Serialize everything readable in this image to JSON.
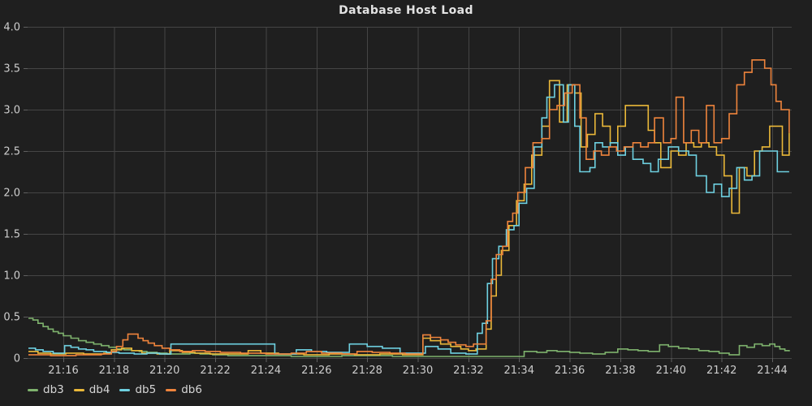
{
  "colors": {
    "background": "#1f1f1f",
    "grid": "#454545",
    "tick": "#5f5f5f",
    "tick_label": "#cdcdcd",
    "title_text": "#e3e3e3",
    "legend_text": "#d6d6d6"
  },
  "chart_data": {
    "type": "line",
    "title": "Database Host Load",
    "line_style": "step-after",
    "grid": true,
    "legend_position": "bottom-left",
    "x_axis": {
      "unit": "time (HH:MM), minutes after 21:00",
      "tick_labels": [
        "21:16",
        "21:18",
        "21:20",
        "21:22",
        "21:24",
        "21:26",
        "21:28",
        "21:30",
        "21:32",
        "21:34",
        "21:36",
        "21:38",
        "21:40",
        "21:42",
        "21:44"
      ],
      "tick_minutes": [
        16,
        18,
        20,
        22,
        24,
        26,
        28,
        30,
        32,
        34,
        36,
        38,
        40,
        42,
        44
      ],
      "range_minutes": [
        14.62,
        44.77
      ]
    },
    "y_axis": {
      "tick_labels": [
        "0",
        "0.5",
        "1.0",
        "1.5",
        "2.0",
        "2.5",
        "3.0",
        "3.5",
        "4.0"
      ],
      "tick_values": [
        0,
        0.5,
        1.0,
        1.5,
        2.0,
        2.5,
        3.0,
        3.5,
        4.0
      ],
      "range": [
        0,
        4.0
      ]
    },
    "series": [
      {
        "name": "db3",
        "color": "#7EB26D",
        "points": [
          [
            14.62,
            0.48
          ],
          [
            14.8,
            0.46
          ],
          [
            15.0,
            0.42
          ],
          [
            15.2,
            0.38
          ],
          [
            15.4,
            0.35
          ],
          [
            15.6,
            0.32
          ],
          [
            15.8,
            0.3
          ],
          [
            16.0,
            0.27
          ],
          [
            16.3,
            0.24
          ],
          [
            16.6,
            0.21
          ],
          [
            16.9,
            0.19
          ],
          [
            17.2,
            0.17
          ],
          [
            17.5,
            0.15
          ],
          [
            17.8,
            0.13
          ],
          [
            18.1,
            0.11
          ],
          [
            18.4,
            0.1
          ],
          [
            18.7,
            0.09
          ],
          [
            19.0,
            0.08
          ],
          [
            19.3,
            0.07
          ],
          [
            19.7,
            0.06
          ],
          [
            20.1,
            0.05
          ],
          [
            20.6,
            0.05
          ],
          [
            21.0,
            0.06
          ],
          [
            21.4,
            0.05
          ],
          [
            21.9,
            0.04
          ],
          [
            22.5,
            0.03
          ],
          [
            23.5,
            0.03
          ],
          [
            25.0,
            0.02
          ],
          [
            27.0,
            0.03
          ],
          [
            29.0,
            0.02
          ],
          [
            31.0,
            0.02
          ],
          [
            33.0,
            0.02
          ],
          [
            34.2,
            0.08
          ],
          [
            34.7,
            0.07
          ],
          [
            35.1,
            0.09
          ],
          [
            35.5,
            0.08
          ],
          [
            36.0,
            0.07
          ],
          [
            36.4,
            0.06
          ],
          [
            36.9,
            0.05
          ],
          [
            37.4,
            0.07
          ],
          [
            37.9,
            0.11
          ],
          [
            38.3,
            0.1
          ],
          [
            38.7,
            0.09
          ],
          [
            39.1,
            0.08
          ],
          [
            39.55,
            0.16
          ],
          [
            39.9,
            0.14
          ],
          [
            40.3,
            0.12
          ],
          [
            40.7,
            0.11
          ],
          [
            41.1,
            0.09
          ],
          [
            41.5,
            0.08
          ],
          [
            41.9,
            0.06
          ],
          [
            42.3,
            0.04
          ],
          [
            42.7,
            0.15
          ],
          [
            43.0,
            0.13
          ],
          [
            43.3,
            0.17
          ],
          [
            43.6,
            0.15
          ],
          [
            43.9,
            0.17
          ],
          [
            44.1,
            0.14
          ],
          [
            44.3,
            0.11
          ],
          [
            44.5,
            0.09
          ],
          [
            44.67,
            0.08
          ]
        ]
      },
      {
        "name": "db4",
        "color": "#EAB839",
        "points": [
          [
            14.62,
            0.08
          ],
          [
            15.0,
            0.06
          ],
          [
            15.5,
            0.05
          ],
          [
            16.1,
            0.06
          ],
          [
            16.8,
            0.05
          ],
          [
            17.6,
            0.06
          ],
          [
            17.9,
            0.1
          ],
          [
            18.3,
            0.12
          ],
          [
            18.7,
            0.09
          ],
          [
            19.1,
            0.06
          ],
          [
            19.7,
            0.05
          ],
          [
            20.2,
            0.09
          ],
          [
            20.7,
            0.07
          ],
          [
            21.2,
            0.06
          ],
          [
            21.8,
            0.05
          ],
          [
            22.6,
            0.05
          ],
          [
            23.3,
            0.09
          ],
          [
            23.8,
            0.06
          ],
          [
            24.5,
            0.05
          ],
          [
            25.5,
            0.04
          ],
          [
            26.5,
            0.05
          ],
          [
            27.5,
            0.04
          ],
          [
            28.5,
            0.05
          ],
          [
            29.4,
            0.04
          ],
          [
            30.2,
            0.24
          ],
          [
            30.5,
            0.21
          ],
          [
            30.9,
            0.17
          ],
          [
            31.3,
            0.14
          ],
          [
            31.7,
            0.11
          ],
          [
            32.0,
            0.09
          ],
          [
            32.3,
            0.11
          ],
          [
            32.7,
            0.35
          ],
          [
            32.9,
            0.75
          ],
          [
            33.1,
            1.0
          ],
          [
            33.3,
            1.3
          ],
          [
            33.6,
            1.6
          ],
          [
            33.9,
            1.9
          ],
          [
            34.2,
            2.1
          ],
          [
            34.5,
            2.45
          ],
          [
            34.9,
            2.8
          ],
          [
            35.2,
            3.35
          ],
          [
            35.6,
            2.85
          ],
          [
            35.9,
            3.3
          ],
          [
            36.2,
            3.2
          ],
          [
            36.45,
            2.55
          ],
          [
            36.7,
            2.7
          ],
          [
            37.0,
            2.95
          ],
          [
            37.3,
            2.8
          ],
          [
            37.6,
            2.6
          ],
          [
            37.9,
            2.8
          ],
          [
            38.2,
            3.05
          ],
          [
            39.1,
            2.75
          ],
          [
            39.35,
            2.6
          ],
          [
            39.6,
            2.3
          ],
          [
            40.0,
            2.5
          ],
          [
            40.3,
            2.45
          ],
          [
            40.6,
            2.6
          ],
          [
            40.9,
            2.55
          ],
          [
            41.2,
            2.6
          ],
          [
            41.5,
            2.55
          ],
          [
            41.8,
            2.45
          ],
          [
            42.1,
            2.2
          ],
          [
            42.4,
            1.75
          ],
          [
            42.7,
            2.3
          ],
          [
            43.0,
            2.2
          ],
          [
            43.3,
            2.5
          ],
          [
            43.6,
            2.55
          ],
          [
            43.9,
            2.8
          ],
          [
            44.2,
            2.8
          ],
          [
            44.4,
            2.45
          ],
          [
            44.67,
            2.72
          ]
        ]
      },
      {
        "name": "db5",
        "color": "#6ED0E0",
        "points": [
          [
            14.62,
            0.12
          ],
          [
            14.9,
            0.1
          ],
          [
            15.2,
            0.08
          ],
          [
            15.6,
            0.06
          ],
          [
            16.05,
            0.15
          ],
          [
            16.3,
            0.13
          ],
          [
            16.6,
            0.11
          ],
          [
            16.9,
            0.1
          ],
          [
            17.2,
            0.08
          ],
          [
            17.7,
            0.07
          ],
          [
            18.2,
            0.06
          ],
          [
            18.8,
            0.05
          ],
          [
            19.3,
            0.06
          ],
          [
            19.8,
            0.05
          ],
          [
            20.25,
            0.17
          ],
          [
            24.35,
            0.05
          ],
          [
            25.2,
            0.1
          ],
          [
            25.8,
            0.08
          ],
          [
            26.4,
            0.07
          ],
          [
            27.3,
            0.17
          ],
          [
            28.0,
            0.14
          ],
          [
            28.6,
            0.12
          ],
          [
            29.3,
            0.06
          ],
          [
            30.3,
            0.14
          ],
          [
            30.8,
            0.11
          ],
          [
            31.3,
            0.06
          ],
          [
            31.9,
            0.05
          ],
          [
            32.35,
            0.3
          ],
          [
            32.55,
            0.42
          ],
          [
            32.75,
            0.9
          ],
          [
            32.95,
            1.2
          ],
          [
            33.2,
            1.35
          ],
          [
            33.5,
            1.55
          ],
          [
            33.8,
            1.6
          ],
          [
            34.0,
            1.87
          ],
          [
            34.3,
            2.05
          ],
          [
            34.6,
            2.55
          ],
          [
            34.9,
            2.9
          ],
          [
            35.1,
            3.15
          ],
          [
            35.4,
            3.3
          ],
          [
            35.75,
            2.85
          ],
          [
            35.95,
            3.3
          ],
          [
            36.2,
            2.8
          ],
          [
            36.4,
            2.25
          ],
          [
            36.8,
            2.3
          ],
          [
            37.0,
            2.6
          ],
          [
            37.3,
            2.55
          ],
          [
            37.6,
            2.6
          ],
          [
            37.9,
            2.45
          ],
          [
            38.2,
            2.55
          ],
          [
            38.5,
            2.4
          ],
          [
            38.9,
            2.35
          ],
          [
            39.2,
            2.25
          ],
          [
            39.5,
            2.4
          ],
          [
            39.9,
            2.55
          ],
          [
            40.3,
            2.5
          ],
          [
            40.7,
            2.45
          ],
          [
            41.0,
            2.2
          ],
          [
            41.4,
            2.0
          ],
          [
            41.7,
            2.1
          ],
          [
            42.0,
            1.95
          ],
          [
            42.3,
            2.05
          ],
          [
            42.6,
            2.3
          ],
          [
            42.9,
            2.15
          ],
          [
            43.2,
            2.2
          ],
          [
            43.5,
            2.5
          ],
          [
            43.9,
            2.5
          ],
          [
            44.2,
            2.25
          ],
          [
            44.67,
            2.25
          ]
        ]
      },
      {
        "name": "db6",
        "color": "#EF843C",
        "points": [
          [
            14.62,
            0.04
          ],
          [
            15.5,
            0.03
          ],
          [
            16.5,
            0.04
          ],
          [
            17.5,
            0.05
          ],
          [
            17.9,
            0.08
          ],
          [
            18.1,
            0.14
          ],
          [
            18.35,
            0.22
          ],
          [
            18.55,
            0.29
          ],
          [
            18.95,
            0.24
          ],
          [
            19.15,
            0.21
          ],
          [
            19.35,
            0.18
          ],
          [
            19.6,
            0.15
          ],
          [
            19.9,
            0.12
          ],
          [
            20.2,
            0.1
          ],
          [
            20.6,
            0.08
          ],
          [
            21.1,
            0.09
          ],
          [
            21.6,
            0.08
          ],
          [
            22.2,
            0.07
          ],
          [
            23.0,
            0.06
          ],
          [
            24.0,
            0.05
          ],
          [
            25.0,
            0.06
          ],
          [
            25.6,
            0.08
          ],
          [
            26.2,
            0.06
          ],
          [
            27.0,
            0.05
          ],
          [
            27.6,
            0.08
          ],
          [
            28.2,
            0.07
          ],
          [
            28.9,
            0.06
          ],
          [
            29.5,
            0.05
          ],
          [
            30.2,
            0.28
          ],
          [
            30.5,
            0.25
          ],
          [
            30.9,
            0.22
          ],
          [
            31.2,
            0.19
          ],
          [
            31.5,
            0.16
          ],
          [
            31.9,
            0.14
          ],
          [
            32.2,
            0.17
          ],
          [
            32.7,
            0.45
          ],
          [
            32.9,
            0.95
          ],
          [
            33.1,
            1.25
          ],
          [
            33.35,
            1.35
          ],
          [
            33.55,
            1.65
          ],
          [
            33.75,
            1.75
          ],
          [
            33.95,
            2.0
          ],
          [
            34.25,
            2.3
          ],
          [
            34.55,
            2.6
          ],
          [
            34.9,
            2.65
          ],
          [
            35.2,
            3.0
          ],
          [
            35.5,
            3.05
          ],
          [
            35.8,
            3.2
          ],
          [
            36.1,
            3.3
          ],
          [
            36.4,
            2.9
          ],
          [
            36.65,
            2.4
          ],
          [
            36.95,
            2.5
          ],
          [
            37.25,
            2.45
          ],
          [
            37.55,
            2.55
          ],
          [
            37.85,
            2.5
          ],
          [
            38.15,
            2.55
          ],
          [
            38.5,
            2.6
          ],
          [
            38.8,
            2.55
          ],
          [
            39.1,
            2.6
          ],
          [
            39.35,
            2.9
          ],
          [
            39.7,
            2.6
          ],
          [
            40.0,
            2.65
          ],
          [
            40.2,
            3.15
          ],
          [
            40.5,
            2.6
          ],
          [
            40.8,
            2.75
          ],
          [
            41.1,
            2.6
          ],
          [
            41.4,
            3.05
          ],
          [
            41.7,
            2.6
          ],
          [
            42.0,
            2.65
          ],
          [
            42.3,
            2.95
          ],
          [
            42.6,
            3.3
          ],
          [
            42.9,
            3.45
          ],
          [
            43.2,
            3.6
          ],
          [
            43.7,
            3.5
          ],
          [
            43.95,
            3.3
          ],
          [
            44.15,
            3.1
          ],
          [
            44.35,
            3.0
          ],
          [
            44.67,
            2.72
          ]
        ]
      }
    ]
  }
}
